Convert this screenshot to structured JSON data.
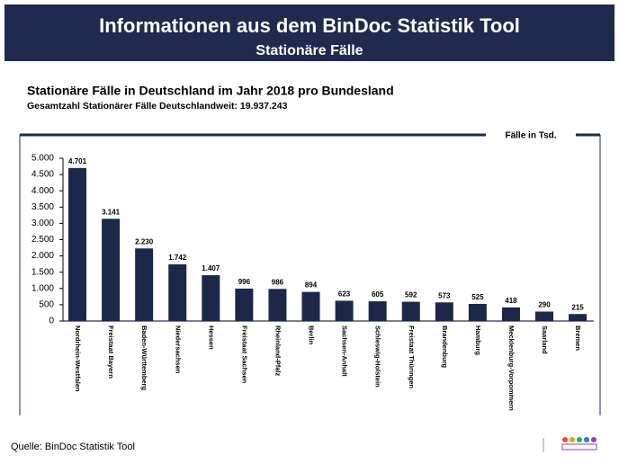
{
  "header": {
    "title": "Informationen aus dem BinDoc Statistik Tool",
    "subtitle": "Stationäre Fälle"
  },
  "chart_data": {
    "type": "bar",
    "title": "Stationäre Fälle in Deutschland im Jahr 2018 pro Bundesland",
    "subtitle": "Gesamtzahl Stationärer Fälle Deutschlandweit: 19.937.243",
    "y_label": "Fälle in Tsd.",
    "categories": [
      "Nordrhein-Westfalen",
      "Freistaat Bayern",
      "Baden-Württemberg",
      "Niedersachsen",
      "Hessen",
      "Freistaat Sachsen",
      "Rheinland-Pfalz",
      "Berlin",
      "Sachsen-Anhalt",
      "Schleswig-Holstein",
      "Freistaat Thüringen",
      "Brandenburg",
      "Hamburg",
      "Mecklenburg-Vorpommern",
      "Saarland",
      "Bremen"
    ],
    "values": [
      4701,
      3141,
      2230,
      1742,
      1407,
      996,
      986,
      894,
      623,
      605,
      592,
      573,
      525,
      418,
      290,
      215
    ],
    "value_labels": [
      "4.701",
      "3.141",
      "2.230",
      "1.742",
      "1.407",
      "996",
      "986",
      "894",
      "623",
      "605",
      "592",
      "573",
      "525",
      "418",
      "290",
      "215"
    ],
    "color": "#1c2749",
    "ylim": [
      0,
      5000
    ],
    "yticks": [
      0,
      {
        "value": 500,
        "label": "500"
      },
      {
        "value": 1000,
        "label": "1.000"
      },
      {
        "value": 1500,
        "label": "1.500"
      },
      {
        "value": 2000,
        "label": "2.000"
      },
      {
        "value": 2500,
        "label": "2.500"
      },
      {
        "value": 3000,
        "label": "3.000"
      },
      {
        "value": 3500,
        "label": "3.500"
      },
      {
        "value": 4000,
        "label": "4.000"
      },
      {
        "value": 4500,
        "label": "4.500"
      },
      {
        "value": 5000,
        "label": "5.000"
      }
    ],
    "grid": false
  },
  "footer": {
    "source": "Quelle: BinDoc Statistik Tool"
  }
}
